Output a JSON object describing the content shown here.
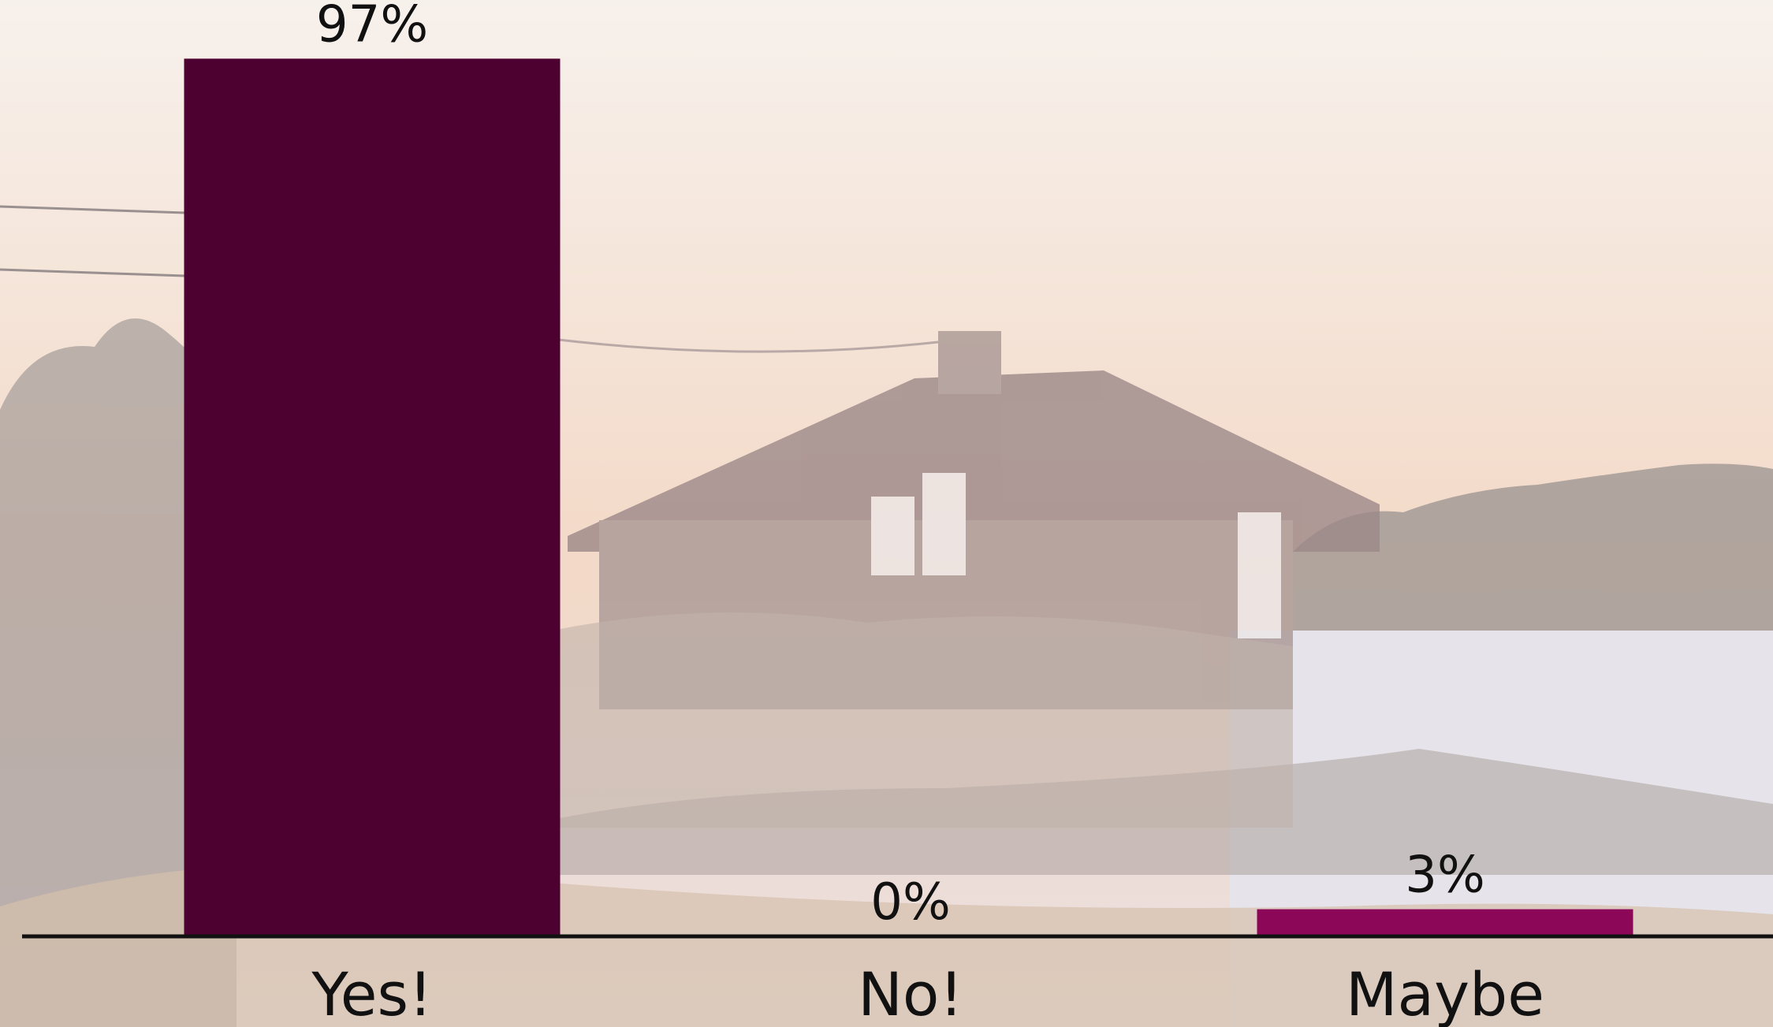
{
  "background": {
    "scene": "lakeside house at dusk",
    "sky_top": "#f7f1ec",
    "sky_bottom": "#f3d9c7",
    "tree_color": "#8c8484",
    "house_color": "#9c8a88",
    "water_color": "#e4e1e6",
    "grass_color": "#c9b49a"
  },
  "chart_data": {
    "type": "bar",
    "categories": [
      "Yes!",
      "No!",
      "Maybe"
    ],
    "values": [
      97,
      0,
      3
    ],
    "value_labels": [
      "97%",
      "0%",
      "3%"
    ],
    "colors": [
      "#4d0130",
      "#4d0130",
      "#8d0758"
    ],
    "ylim": [
      0,
      100
    ],
    "grid": false,
    "axis_color": "#111111"
  }
}
